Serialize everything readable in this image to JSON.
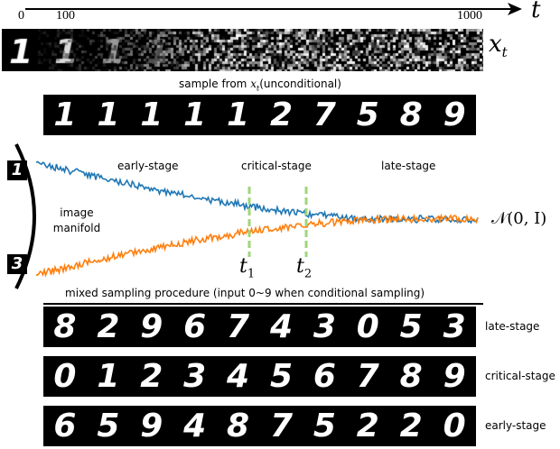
{
  "axis": {
    "label": "t",
    "ticks": [
      "0",
      "100",
      "1000"
    ]
  },
  "xt_label": "x",
  "xt_sub": "t",
  "noise_strip": {
    "digit": "1"
  },
  "unconditional": {
    "caption_prefix": "sample from ",
    "caption_var": "x",
    "caption_sub": "t",
    "caption_suffix": "(unconditional)",
    "digits": [
      "1",
      "1",
      "1",
      "1",
      "1",
      "2",
      "7",
      "5",
      "8",
      "9"
    ]
  },
  "manifold": {
    "label_line1": "image",
    "label_line2": "manifold",
    "top_digit": "1",
    "bottom_digit": "3",
    "stages": {
      "early": "early-stage",
      "critical": "critical-stage",
      "late": "late-stage"
    },
    "t1": "t",
    "t1_sub": "1",
    "t2": "t",
    "t2_sub": "2",
    "gaussian": "𝒩(0, I)",
    "colors": {
      "top_path": "#1f77b4",
      "bottom_path": "#ff7f0e",
      "markers": "#9fd67a"
    }
  },
  "mixed": {
    "caption": "mixed sampling procedure (input 0~9 when conditional sampling)",
    "rows": [
      {
        "label": "late-stage",
        "digits": [
          "8",
          "2",
          "9",
          "6",
          "7",
          "4",
          "3",
          "0",
          "5",
          "3"
        ]
      },
      {
        "label": "critical-stage",
        "digits": [
          "0",
          "1",
          "2",
          "3",
          "4",
          "5",
          "6",
          "7",
          "8",
          "9"
        ]
      },
      {
        "label": "early-stage",
        "digits": [
          "6",
          "5",
          "9",
          "4",
          "8",
          "7",
          "5",
          "2",
          "2",
          "0"
        ]
      }
    ]
  }
}
